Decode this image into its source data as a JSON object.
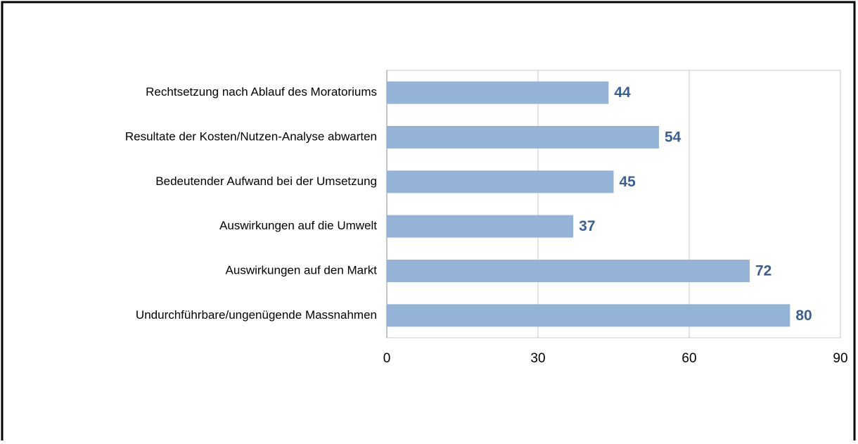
{
  "chart_data": {
    "type": "bar",
    "orientation": "horizontal",
    "categories": [
      "Rechtsetzung nach Ablauf des Moratoriums",
      "Resultate der Kosten/Nutzen-Analyse abwarten",
      "Bedeutender Aufwand bei der Umsetzung",
      "Auswirkungen auf die Umwelt",
      "Auswirkungen auf den Markt",
      "Undurchführbare/ungenügende Massnahmen"
    ],
    "values": [
      44,
      54,
      45,
      37,
      72,
      80
    ],
    "color": "#95b3d7",
    "xlim": [
      0,
      90
    ],
    "xticks": [
      0,
      30,
      60,
      90
    ],
    "grid": true
  }
}
